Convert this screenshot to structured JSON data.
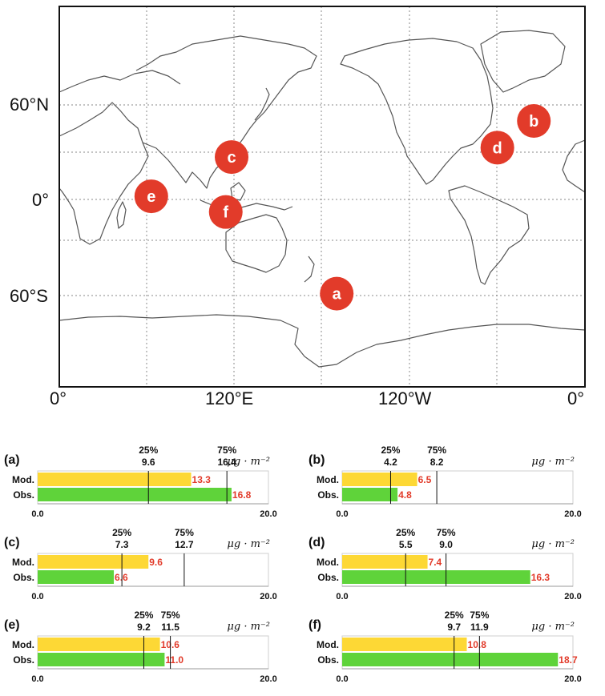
{
  "map": {
    "y_labels": [
      "60°N",
      "0°",
      "60°S"
    ],
    "x_labels": [
      "0°",
      "120°E",
      "120°W",
      "0°"
    ],
    "markers": [
      {
        "id": "a",
        "label": "a",
        "lon": 190,
        "lat": -60
      },
      {
        "id": "b",
        "label": "b",
        "lon": 325,
        "lat": 50
      },
      {
        "id": "c",
        "label": "c",
        "lon": 118,
        "lat": 27
      },
      {
        "id": "d",
        "label": "d",
        "lon": 300,
        "lat": 33
      },
      {
        "id": "e",
        "label": "e",
        "lon": 63,
        "lat": 2
      },
      {
        "id": "f",
        "label": "f",
        "lon": 114,
        "lat": -8
      }
    ],
    "colors": {
      "marker": "#e23b2a",
      "coast": "#555555"
    }
  },
  "chart_data": [
    {
      "type": "bar",
      "label": "(a)",
      "categories": [
        "Mod.",
        "Obs."
      ],
      "values": [
        13.3,
        16.8
      ],
      "value_labels": [
        "13.3",
        "16.8"
      ],
      "q25": 9.6,
      "q75": 16.4,
      "q25_label": "9.6",
      "q75_label": "16.4",
      "q25_title": "25%",
      "q75_title": "75%",
      "xlim": [
        0,
        20
      ],
      "x_tick_labels": [
        "0.0",
        "20.0"
      ],
      "unit": "μg · m⁻²"
    },
    {
      "type": "bar",
      "label": "(b)",
      "categories": [
        "Mod.",
        "Obs."
      ],
      "values": [
        6.5,
        4.8
      ],
      "value_labels": [
        "6.5",
        "4.8"
      ],
      "q25": 4.2,
      "q75": 8.2,
      "q25_label": "4.2",
      "q75_label": "8.2",
      "q25_title": "25%",
      "q75_title": "75%",
      "xlim": [
        0,
        20
      ],
      "x_tick_labels": [
        "0.0",
        "20.0"
      ],
      "unit": "μg · m⁻²"
    },
    {
      "type": "bar",
      "label": "(c)",
      "categories": [
        "Mod.",
        "Obs."
      ],
      "values": [
        9.6,
        6.6
      ],
      "value_labels": [
        "9.6",
        "6.6"
      ],
      "q25": 7.3,
      "q75": 12.7,
      "q25_label": "7.3",
      "q75_label": "12.7",
      "q25_title": "25%",
      "q75_title": "75%",
      "xlim": [
        0,
        20
      ],
      "x_tick_labels": [
        "0.0",
        "20.0"
      ],
      "unit": "μg · m⁻²"
    },
    {
      "type": "bar",
      "label": "(d)",
      "categories": [
        "Mod.",
        "Obs."
      ],
      "values": [
        7.4,
        16.3
      ],
      "value_labels": [
        "7.4",
        "16.3"
      ],
      "q25": 5.5,
      "q75": 9.0,
      "q25_label": "5.5",
      "q75_label": "9.0",
      "q25_title": "25%",
      "q75_title": "75%",
      "xlim": [
        0,
        20
      ],
      "x_tick_labels": [
        "0.0",
        "20.0"
      ],
      "unit": "μg · m⁻²"
    },
    {
      "type": "bar",
      "label": "(e)",
      "categories": [
        "Mod.",
        "Obs."
      ],
      "values": [
        10.6,
        11.0
      ],
      "value_labels": [
        "10.6",
        "11.0"
      ],
      "q25": 9.2,
      "q75": 11.5,
      "q25_label": "9.2",
      "q75_label": "11.5",
      "q25_title": "25%",
      "q75_title": "75%",
      "xlim": [
        0,
        20
      ],
      "x_tick_labels": [
        "0.0",
        "20.0"
      ],
      "unit": "μg · m⁻²"
    },
    {
      "type": "bar",
      "label": "(f)",
      "categories": [
        "Mod.",
        "Obs."
      ],
      "values": [
        10.8,
        18.7
      ],
      "value_labels": [
        "10.8",
        "18.7"
      ],
      "q25": 9.7,
      "q75": 11.9,
      "q25_label": "9.7",
      "q75_label": "11.9",
      "q25_title": "25%",
      "q75_title": "75%",
      "xlim": [
        0,
        20
      ],
      "x_tick_labels": [
        "0.0",
        "20.0"
      ],
      "unit": "μg · m⁻²"
    }
  ],
  "colors": {
    "mod_bar": "#fdd835",
    "obs_bar": "#5fd33a",
    "value_text": "#e23b2a"
  }
}
